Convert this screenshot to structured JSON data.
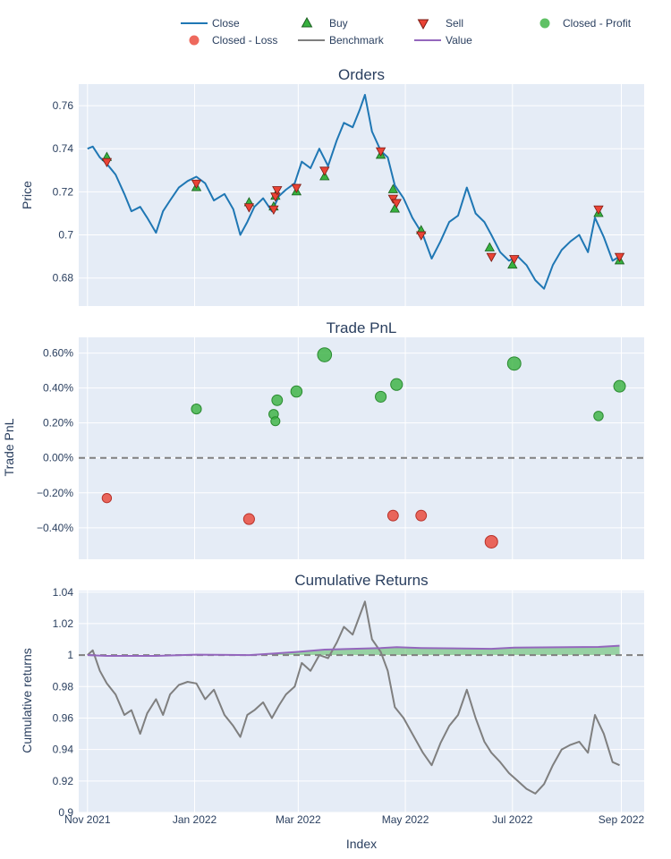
{
  "legend": [
    {
      "label": "Close",
      "kind": "line",
      "color": "#1f77b4"
    },
    {
      "label": "Buy",
      "kind": "triangle-up",
      "color": "#37b13f"
    },
    {
      "label": "Sell",
      "kind": "triangle-down",
      "color": "#ea4335"
    },
    {
      "label": "Closed - Profit",
      "kind": "circle",
      "color": "#37b13f"
    },
    {
      "label": "Closed - Loss",
      "kind": "circle",
      "color": "#ea4335"
    },
    {
      "label": "Benchmark",
      "kind": "line",
      "color": "#7f7f7f"
    },
    {
      "label": "Value",
      "kind": "line",
      "color": "#9467bd"
    }
  ],
  "colors": {
    "plot_bg": "#e5ecf6",
    "grid": "#ffffff",
    "close": "#1f77b4",
    "buy": "#37b13f",
    "sell": "#ea4335",
    "profit": "#37b13f",
    "loss": "#ea4335",
    "benchmark": "#7f7f7f",
    "value": "#9467bd",
    "zero_line": "#808080"
  },
  "x_axis": {
    "title": "Index",
    "ticks": [
      "Nov 2021",
      "Jan 2022",
      "Mar 2022",
      "May 2022",
      "Jul 2022",
      "Sep 2022"
    ]
  },
  "chart_data": [
    {
      "type": "line",
      "title": "Orders",
      "ylabel": "Price",
      "ylim": [
        0.667,
        0.77
      ],
      "yticks": [
        0.68,
        0.7,
        0.72,
        0.74,
        0.76
      ],
      "ytick_labels": [
        "0.68",
        "0.7",
        "0.72",
        "0.74",
        "0.76"
      ],
      "grid": true,
      "series": [
        {
          "name": "Close",
          "x": [
            "2021-11-01",
            "2021-11-04",
            "2021-11-08",
            "2021-11-12",
            "2021-11-17",
            "2021-11-22",
            "2021-11-26",
            "2021-12-01",
            "2021-12-05",
            "2021-12-10",
            "2021-12-14",
            "2021-12-18",
            "2021-12-23",
            "2021-12-28",
            "2022-01-02",
            "2022-01-07",
            "2022-01-12",
            "2022-01-18",
            "2022-01-23",
            "2022-01-27",
            "2022-01-31",
            "2022-02-04",
            "2022-02-09",
            "2022-02-14",
            "2022-02-18",
            "2022-02-22",
            "2022-02-27",
            "2022-03-03",
            "2022-03-08",
            "2022-03-13",
            "2022-03-18",
            "2022-03-23",
            "2022-03-27",
            "2022-04-01",
            "2022-04-05",
            "2022-04-08",
            "2022-04-12",
            "2022-04-17",
            "2022-04-21",
            "2022-04-25",
            "2022-04-30",
            "2022-05-05",
            "2022-05-11",
            "2022-05-16",
            "2022-05-21",
            "2022-05-26",
            "2022-05-31",
            "2022-06-05",
            "2022-06-10",
            "2022-06-15",
            "2022-06-19",
            "2022-06-24",
            "2022-06-29",
            "2022-07-04",
            "2022-07-09",
            "2022-07-14",
            "2022-07-19",
            "2022-07-24",
            "2022-07-29",
            "2022-08-03",
            "2022-08-08",
            "2022-08-13",
            "2022-08-17",
            "2022-08-22",
            "2022-08-27",
            "2022-08-31"
          ],
          "y": [
            0.74,
            0.741,
            0.736,
            0.733,
            0.728,
            0.719,
            0.711,
            0.713,
            0.708,
            0.701,
            0.711,
            0.716,
            0.722,
            0.725,
            0.727,
            0.724,
            0.716,
            0.719,
            0.712,
            0.7,
            0.706,
            0.713,
            0.717,
            0.711,
            0.718,
            0.721,
            0.724,
            0.734,
            0.731,
            0.74,
            0.732,
            0.744,
            0.752,
            0.75,
            0.758,
            0.765,
            0.748,
            0.739,
            0.736,
            0.723,
            0.717,
            0.708,
            0.7,
            0.689,
            0.697,
            0.706,
            0.709,
            0.722,
            0.71,
            0.706,
            0.7,
            0.692,
            0.688,
            0.69,
            0.686,
            0.679,
            0.675,
            0.686,
            0.693,
            0.697,
            0.7,
            0.692,
            0.708,
            0.699,
            0.688,
            0.69
          ]
        }
      ],
      "buy": {
        "x": [
          "2021-11-12",
          "2022-01-02",
          "2022-02-01",
          "2022-02-15",
          "2022-02-16",
          "2022-02-28",
          "2022-03-16",
          "2022-04-17",
          "2022-04-24",
          "2022-04-25",
          "2022-05-10",
          "2022-06-18",
          "2022-07-01",
          "2022-08-19",
          "2022-08-31"
        ],
        "y": [
          0.736,
          0.722,
          0.715,
          0.713,
          0.718,
          0.72,
          0.727,
          0.737,
          0.721,
          0.712,
          0.702,
          0.694,
          0.686,
          0.71,
          0.688
        ]
      },
      "sell": {
        "x": [
          "2021-11-12",
          "2022-01-02",
          "2022-02-01",
          "2022-02-15",
          "2022-02-16",
          "2022-02-17",
          "2022-02-28",
          "2022-03-16",
          "2022-04-17",
          "2022-04-24",
          "2022-04-26",
          "2022-05-10",
          "2022-06-19",
          "2022-07-02",
          "2022-08-19",
          "2022-08-31"
        ],
        "y": [
          0.734,
          0.724,
          0.713,
          0.712,
          0.718,
          0.721,
          0.722,
          0.73,
          0.739,
          0.717,
          0.715,
          0.7,
          0.69,
          0.689,
          0.712,
          0.69
        ]
      }
    },
    {
      "type": "scatter",
      "title": "Trade PnL",
      "ylabel": "Trade PnL",
      "ylim": [
        -0.0058,
        0.0069
      ],
      "yticks": [
        -0.004,
        -0.002,
        0,
        0.002,
        0.004,
        0.006
      ],
      "ytick_labels": [
        "−0.40%",
        "−0.20%",
        "0.00%",
        "0.20%",
        "0.40%",
        "0.60%"
      ],
      "grid": true,
      "zero_line": 0,
      "profit": {
        "x": [
          "2022-01-02",
          "2022-02-15",
          "2022-02-16",
          "2022-02-17",
          "2022-02-28",
          "2022-03-16",
          "2022-04-17",
          "2022-04-26",
          "2022-07-02",
          "2022-08-19",
          "2022-08-31"
        ],
        "y": [
          0.0028,
          0.0025,
          0.0021,
          0.0033,
          0.0038,
          0.0059,
          0.0035,
          0.0042,
          0.0054,
          0.0024,
          0.0041
        ]
      },
      "loss": {
        "x": [
          "2021-11-12",
          "2022-02-01",
          "2022-04-24",
          "2022-05-10",
          "2022-06-19"
        ],
        "y": [
          -0.0023,
          -0.0035,
          -0.0033,
          -0.0033,
          -0.0048
        ]
      }
    },
    {
      "type": "line",
      "title": "Cumulative Returns",
      "ylabel": "Cumulative returns",
      "ylim": [
        0.9,
        1.041
      ],
      "yticks": [
        0.9,
        0.92,
        0.94,
        0.96,
        0.98,
        1.0,
        1.02,
        1.04
      ],
      "ytick_labels": [
        "0.9",
        "0.92",
        "0.94",
        "0.96",
        "0.98",
        "1",
        "1.02",
        "1.04"
      ],
      "grid": true,
      "baseline": 1,
      "series": [
        {
          "name": "Benchmark",
          "x": [
            "2021-11-01",
            "2021-11-04",
            "2021-11-08",
            "2021-11-12",
            "2021-11-17",
            "2021-11-22",
            "2021-11-26",
            "2021-12-01",
            "2021-12-05",
            "2021-12-10",
            "2021-12-14",
            "2021-12-18",
            "2021-12-23",
            "2021-12-28",
            "2022-01-02",
            "2022-01-07",
            "2022-01-12",
            "2022-01-18",
            "2022-01-23",
            "2022-01-27",
            "2022-01-31",
            "2022-02-04",
            "2022-02-09",
            "2022-02-14",
            "2022-02-18",
            "2022-02-22",
            "2022-02-27",
            "2022-03-03",
            "2022-03-08",
            "2022-03-13",
            "2022-03-18",
            "2022-03-23",
            "2022-03-27",
            "2022-04-01",
            "2022-04-05",
            "2022-04-08",
            "2022-04-12",
            "2022-04-17",
            "2022-04-21",
            "2022-04-25",
            "2022-04-30",
            "2022-05-05",
            "2022-05-11",
            "2022-05-16",
            "2022-05-21",
            "2022-05-26",
            "2022-05-31",
            "2022-06-05",
            "2022-06-10",
            "2022-06-15",
            "2022-06-19",
            "2022-06-24",
            "2022-06-29",
            "2022-07-04",
            "2022-07-09",
            "2022-07-14",
            "2022-07-19",
            "2022-07-24",
            "2022-07-29",
            "2022-08-03",
            "2022-08-08",
            "2022-08-13",
            "2022-08-17",
            "2022-08-22",
            "2022-08-27",
            "2022-08-31"
          ],
          "y": [
            1.0,
            1.003,
            0.99,
            0.982,
            0.975,
            0.962,
            0.965,
            0.95,
            0.963,
            0.972,
            0.962,
            0.975,
            0.981,
            0.983,
            0.982,
            0.972,
            0.978,
            0.962,
            0.955,
            0.948,
            0.962,
            0.965,
            0.97,
            0.96,
            0.968,
            0.975,
            0.98,
            0.995,
            0.99,
            1.0,
            0.998,
            1.008,
            1.018,
            1.013,
            1.025,
            1.034,
            1.01,
            1.002,
            0.99,
            0.967,
            0.96,
            0.95,
            0.938,
            0.93,
            0.944,
            0.955,
            0.962,
            0.978,
            0.96,
            0.945,
            0.938,
            0.932,
            0.925,
            0.92,
            0.915,
            0.912,
            0.918,
            0.93,
            0.94,
            0.943,
            0.945,
            0.938,
            0.962,
            0.95,
            0.932,
            0.93
          ]
        },
        {
          "name": "Value",
          "x": [
            "2021-11-01",
            "2021-11-12",
            "2021-12-10",
            "2022-01-02",
            "2022-02-01",
            "2022-02-15",
            "2022-02-28",
            "2022-03-16",
            "2022-04-17",
            "2022-04-26",
            "2022-05-10",
            "2022-06-19",
            "2022-07-02",
            "2022-08-19",
            "2022-08-31"
          ],
          "y": [
            1.0,
            0.9995,
            0.9995,
            1.0003,
            1.0,
            1.001,
            1.002,
            1.0035,
            1.0045,
            1.005,
            1.0045,
            1.004,
            1.0048,
            1.0052,
            1.006
          ]
        }
      ]
    }
  ]
}
